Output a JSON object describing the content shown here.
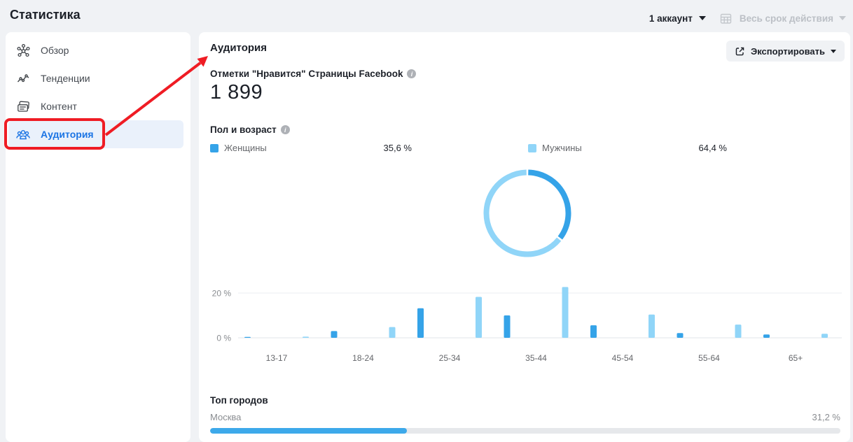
{
  "page_title": "Статистика",
  "header": {
    "account": "1 аккаунт",
    "period": "Весь срок действия"
  },
  "sidebar": {
    "items": [
      {
        "label": "Обзор",
        "icon": "overview-icon",
        "selected": false
      },
      {
        "label": "Тенденции",
        "icon": "trends-icon",
        "selected": false
      },
      {
        "label": "Контент",
        "icon": "content-icon",
        "selected": false
      },
      {
        "label": "Аудитория",
        "icon": "audience-icon",
        "selected": true
      }
    ]
  },
  "main": {
    "title": "Аудитория",
    "export_label": "Экспортировать",
    "metric_label": "Отметки \"Нравится\" Страницы Facebook",
    "metric_value": "1 899",
    "gender_age_title": "Пол и возраст",
    "top_cities_title": "Топ городов",
    "cities": [
      {
        "name": "Москва",
        "percent": "31,2 %",
        "value": 31.2
      }
    ]
  },
  "colors": {
    "female": "#35a3e8",
    "male": "#90d5f8",
    "annotation_red": "#ef1c24",
    "selected_blue": "#1b74e4",
    "city_bar_fill": "#3da9ea"
  },
  "chart_data": [
    {
      "type": "pie",
      "donut": true,
      "title": "Пол и возраст",
      "legend_position": "top",
      "series": [
        {
          "name": "Женщины",
          "value": 35.6,
          "label": "35,6 %",
          "color": "#35a3e8"
        },
        {
          "name": "Мужчины",
          "value": 64.4,
          "label": "64,4 %",
          "color": "#90d5f8"
        }
      ]
    },
    {
      "type": "bar",
      "title": "Пол и возраст",
      "categories": [
        "13-17",
        "18-24",
        "25-34",
        "35-44",
        "45-54",
        "55-64",
        "65+"
      ],
      "series": [
        {
          "name": "Женщины",
          "color": "#35a3e8",
          "values": [
            0.2,
            3.0,
            13.2,
            10.0,
            5.6,
            2.1,
            1.5
          ]
        },
        {
          "name": "Мужчины",
          "color": "#90d5f8",
          "values": [
            0.5,
            4.8,
            18.3,
            22.7,
            10.4,
            5.9,
            1.8
          ]
        }
      ],
      "ylim": [
        0,
        25
      ],
      "yticks": [
        {
          "value": 20,
          "label": "20 %"
        },
        {
          "value": 0,
          "label": "0 %"
        }
      ],
      "grid": true,
      "legend_position": "none"
    },
    {
      "type": "bar",
      "title": "Топ городов",
      "categories": [
        "Москва"
      ],
      "values": [
        31.2
      ],
      "xlim": [
        0,
        100
      ],
      "orientation": "horizontal"
    }
  ]
}
